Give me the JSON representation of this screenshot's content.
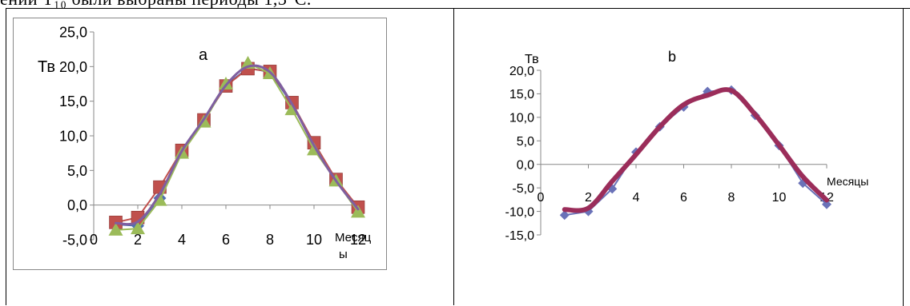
{
  "top_text": "ении  T₁₀  были  выбраны  периоды         1,3°C.",
  "chart_data": [
    {
      "type": "line",
      "title": "a",
      "ylabel": "Тв",
      "xlabel": "Месяцы",
      "xlim": [
        0,
        12
      ],
      "ylim": [
        -5,
        25
      ],
      "x_ticks": [
        "0",
        "2",
        "4",
        "6",
        "8",
        "10",
        "12"
      ],
      "y_ticks": [
        "25,0",
        "20,0",
        "15,0",
        "10,0",
        "5,0",
        "0,0",
        "-5,0"
      ],
      "grid": false,
      "series": [
        {
          "color": "#4f6fb0",
          "marker": "diamond",
          "x": [
            1,
            2,
            3,
            4,
            5,
            6,
            7,
            8,
            9,
            10,
            11,
            12
          ],
          "y": [
            -2.8,
            -3.0,
            1.0,
            7.6,
            12.2,
            17.3,
            19.8,
            19.2,
            14.6,
            9.0,
            3.6,
            -0.3
          ]
        },
        {
          "color": "#c0504d",
          "marker": "square",
          "x": [
            1,
            2,
            3,
            4,
            5,
            6,
            7,
            8,
            9,
            10,
            11,
            12
          ],
          "y": [
            -2.5,
            -1.8,
            2.6,
            7.9,
            12.3,
            17.2,
            19.7,
            19.3,
            14.8,
            9.0,
            3.7,
            -0.3
          ]
        },
        {
          "color": "#9bbb59",
          "marker": "triangle",
          "x": [
            1,
            2,
            3,
            4,
            5,
            6,
            7,
            8,
            9,
            10,
            11,
            12
          ],
          "y": [
            -3.6,
            -3.4,
            0.7,
            7.5,
            12.0,
            17.5,
            20.5,
            19.0,
            13.8,
            8.0,
            3.5,
            -1.0
          ]
        },
        {
          "color": "#7f5fa0",
          "marker": "none",
          "smooth": true,
          "x": [
            1,
            2,
            3,
            4,
            5,
            6,
            7,
            8,
            9,
            10,
            11,
            12
          ],
          "y": [
            -2.6,
            -2.4,
            1.6,
            7.8,
            12.4,
            17.3,
            20.0,
            19.2,
            14.6,
            8.6,
            3.5,
            -0.6
          ]
        }
      ]
    },
    {
      "type": "line",
      "title": "b",
      "ylabel": "Тв",
      "xlabel": "Месяцы",
      "xlim": [
        0,
        12
      ],
      "ylim": [
        -15,
        20
      ],
      "x_ticks": [
        "0",
        "2",
        "4",
        "6",
        "8",
        "10",
        "12"
      ],
      "y_ticks": [
        "20,0",
        "15,0",
        "10,0",
        "5,0",
        "0,0",
        "-5,0",
        "-10,0",
        "-15,0"
      ],
      "grid": false,
      "series": [
        {
          "color": "#6a72b8",
          "marker": "diamond",
          "x": [
            1,
            2,
            3,
            4,
            5,
            6,
            7,
            8,
            9,
            10,
            11,
            12
          ],
          "y": [
            -10.8,
            -10.0,
            -5.2,
            2.6,
            8.0,
            12.2,
            15.5,
            15.8,
            10.4,
            4.0,
            -4.0,
            -8.5
          ]
        },
        {
          "color": "#9b2d5a",
          "marker": "none",
          "thick": true,
          "x": [
            1,
            2,
            3,
            4,
            5,
            6,
            7,
            8,
            9,
            10,
            11,
            12
          ],
          "y": [
            -9.6,
            -9.3,
            -3.6,
            2.1,
            8.0,
            12.7,
            14.7,
            15.7,
            10.6,
            4.1,
            -2.6,
            -7.6
          ]
        }
      ]
    }
  ]
}
